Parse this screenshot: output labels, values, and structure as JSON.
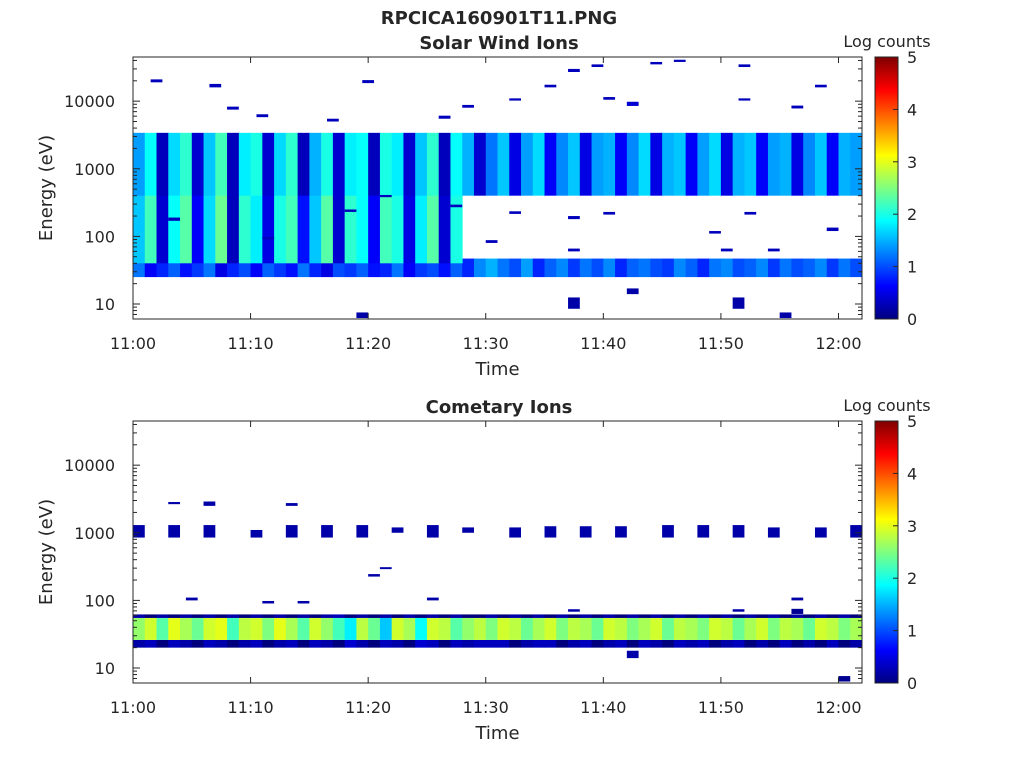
{
  "figure": {
    "title": "RPCICA160901T11.PNG"
  },
  "colormap": {
    "stops": [
      "#00007f",
      "#0000ff",
      "#007fff",
      "#00ffff",
      "#7fff7f",
      "#ffff00",
      "#ff7f00",
      "#ff0000",
      "#7f0000"
    ]
  },
  "chart_data": [
    {
      "type": "heatmap",
      "title": "Solar Wind Ions",
      "xlabel": "Time",
      "ylabel": "Energy (eV)",
      "yscale": "log",
      "xlim": [
        "11:00",
        "12:02"
      ],
      "ylim": [
        6,
        45000
      ],
      "x_ticks": [
        "11:00",
        "11:10",
        "11:20",
        "11:30",
        "11:40",
        "11:50",
        "12:00"
      ],
      "y_ticks": [
        {
          "value": 10,
          "label": "10"
        },
        {
          "value": 100,
          "label": "100"
        },
        {
          "value": 1000,
          "label": "1000"
        },
        {
          "value": 10000,
          "label": "10000"
        }
      ],
      "colorbar": {
        "label": "Log counts",
        "min": 0,
        "max": 5,
        "ticks": [
          "0",
          "1",
          "2",
          "3",
          "4",
          "5"
        ]
      },
      "bands": [
        {
          "start": "11:00",
          "end": "12:02",
          "step_min": 1,
          "e_lo": 25,
          "e_hi": 47,
          "levels": [
            1.2,
            0.6,
            0.8,
            1.1,
            0.7,
            0.9,
            1.2,
            0.5,
            0.8,
            1.0,
            0.6,
            1.1,
            0.9,
            0.7,
            1.2,
            0.8,
            0.5,
            1.0,
            0.9,
            1.1,
            0.7,
            0.8,
            1.2,
            0.6,
            0.9,
            1.0,
            0.7,
            1.1,
            0.8,
            1.3,
            1.5,
            1.2,
            1.0,
            1.4,
            0.8,
            1.1,
            1.3,
            0.9,
            1.2,
            1.0,
            1.3,
            0.8,
            1.1,
            1.2,
            1.0,
            0.9,
            1.3,
            1.1,
            0.8,
            1.2,
            1.3,
            1.0,
            1.1,
            1.3,
            0.9,
            1.2,
            1.0,
            1.1,
            1.3,
            0.9,
            1.2,
            1.0
          ]
        },
        {
          "start": "11:00",
          "end": "11:28",
          "step_min": 1,
          "e_lo": 40,
          "e_hi": 600,
          "levels": [
            1.6,
            2.2,
            0.4,
            1.9,
            2.3,
            0.6,
            1.7,
            2.4,
            0.3,
            2.1,
            1.8,
            0.5,
            2.0,
            2.2,
            0.7,
            1.6,
            2.3,
            0.4,
            2.1,
            1.9,
            0.6,
            2.2,
            2.0,
            0.5,
            1.8,
            2.3,
            0.4,
            2.0
          ]
        },
        {
          "start": "11:28",
          "end": "12:02",
          "step_min": 1,
          "e_lo": 700,
          "e_hi": 1900,
          "levels": [
            1.9,
            2.2,
            0.8,
            2.0,
            2.3,
            1.0,
            1.8,
            2.2,
            0.9,
            2.1,
            2.2,
            1.1,
            2.0,
            2.3,
            0.8,
            2.2,
            2.1,
            1.0,
            1.9,
            2.3,
            0.9,
            2.1,
            2.2,
            1.0,
            2.0,
            2.3,
            0.8,
            2.1,
            2.2,
            1.0,
            1.9,
            2.2,
            0.9,
            2.0
          ]
        },
        {
          "start": "11:00",
          "end": "12:02",
          "step_min": 1,
          "e_lo": 400,
          "e_hi": 3400,
          "levels": [
            1.4,
            1.9,
            0.3,
            1.7,
            2.1,
            0.4,
            1.6,
            2.2,
            0.3,
            1.8,
            2.0,
            0.4,
            1.7,
            2.1,
            0.3,
            1.5,
            2.0,
            0.4,
            1.8,
            1.9,
            0.3,
            2.0,
            1.8,
            0.4,
            1.6,
            2.1,
            0.3,
            1.9,
            1.5,
            0.4,
            1.2,
            1.6,
            0.5,
            1.4,
            1.7,
            0.6,
            1.3,
            1.6,
            0.5,
            1.4,
            1.5,
            0.6,
            1.3,
            1.7,
            0.5,
            1.5,
            1.6,
            0.6,
            1.4,
            1.7,
            0.5,
            1.5,
            1.6,
            0.6,
            1.4,
            1.5,
            0.5,
            1.3,
            1.6,
            0.6,
            1.5,
            1.4
          ]
        }
      ],
      "sparse_cells": [
        {
          "t": "11:01.5",
          "e_lo": 19000,
          "e_hi": 21000,
          "level": 0.3
        },
        {
          "t": "11:06.5",
          "e_lo": 16000,
          "e_hi": 18000,
          "level": 0.3
        },
        {
          "t": "11:08",
          "e_lo": 7500,
          "e_hi": 8300,
          "level": 0.3
        },
        {
          "t": "11:10.5",
          "e_lo": 5800,
          "e_hi": 6400,
          "level": 0.3
        },
        {
          "t": "11:16.5",
          "e_lo": 5000,
          "e_hi": 5500,
          "level": 0.3
        },
        {
          "t": "11:19.5",
          "e_lo": 18500,
          "e_hi": 20500,
          "level": 0.3
        },
        {
          "t": "11:26",
          "e_lo": 5500,
          "e_hi": 6100,
          "level": 0.3
        },
        {
          "t": "11:28",
          "e_lo": 8000,
          "e_hi": 8800,
          "level": 0.3
        },
        {
          "t": "11:32",
          "e_lo": 10200,
          "e_hi": 11000,
          "level": 0.3
        },
        {
          "t": "11:35",
          "e_lo": 16000,
          "e_hi": 17500,
          "level": 0.3
        },
        {
          "t": "11:37",
          "e_lo": 27000,
          "e_hi": 30000,
          "level": 0.3
        },
        {
          "t": "11:39",
          "e_lo": 32000,
          "e_hi": 35000,
          "level": 0.3
        },
        {
          "t": "11:40",
          "e_lo": 10500,
          "e_hi": 11500,
          "level": 0.3
        },
        {
          "t": "11:42",
          "e_lo": 8500,
          "e_hi": 9800,
          "level": 0.4
        },
        {
          "t": "11:44",
          "e_lo": 35000,
          "e_hi": 38000,
          "level": 0.3
        },
        {
          "t": "11:46",
          "e_lo": 38000,
          "e_hi": 41000,
          "level": 0.3
        },
        {
          "t": "11:51.5",
          "e_lo": 10200,
          "e_hi": 11000,
          "level": 0.3
        },
        {
          "t": "11:51.5",
          "e_lo": 32000,
          "e_hi": 35000,
          "level": 0.3
        },
        {
          "t": "11:56",
          "e_lo": 7800,
          "e_hi": 8600,
          "level": 0.3
        },
        {
          "t": "11:58",
          "e_lo": 16000,
          "e_hi": 17500,
          "level": 0.3
        },
        {
          "t": "11:03",
          "e_lo": 170,
          "e_hi": 190,
          "level": 0.3
        },
        {
          "t": "11:11",
          "e_lo": 90,
          "e_hi": 98,
          "level": 0.3
        },
        {
          "t": "11:18",
          "e_lo": 230,
          "e_hi": 250,
          "level": 0.3
        },
        {
          "t": "11:21",
          "e_lo": 380,
          "e_hi": 410,
          "level": 0.3
        },
        {
          "t": "11:27",
          "e_lo": 270,
          "e_hi": 295,
          "level": 0.3
        },
        {
          "t": "11:30",
          "e_lo": 80,
          "e_hi": 88,
          "level": 0.3
        },
        {
          "t": "11:32",
          "e_lo": 215,
          "e_hi": 235,
          "level": 0.3
        },
        {
          "t": "11:37",
          "e_lo": 180,
          "e_hi": 200,
          "level": 0.3
        },
        {
          "t": "11:37",
          "e_lo": 60,
          "e_hi": 66,
          "level": 0.3
        },
        {
          "t": "11:40",
          "e_lo": 210,
          "e_hi": 230,
          "level": 0.3
        },
        {
          "t": "11:49",
          "e_lo": 110,
          "e_hi": 120,
          "level": 0.3
        },
        {
          "t": "11:50",
          "e_lo": 60,
          "e_hi": 66,
          "level": 0.3
        },
        {
          "t": "11:52",
          "e_lo": 210,
          "e_hi": 230,
          "level": 0.3
        },
        {
          "t": "11:54",
          "e_lo": 60,
          "e_hi": 66,
          "level": 0.3
        },
        {
          "t": "11:59",
          "e_lo": 120,
          "e_hi": 135,
          "level": 0.3
        },
        {
          "t": "11:37",
          "e_lo": 8.5,
          "e_hi": 12.5,
          "level": 0.2
        },
        {
          "t": "11:42",
          "e_lo": 14,
          "e_hi": 17,
          "level": 0.2
        },
        {
          "t": "11:51",
          "e_lo": 8.5,
          "e_hi": 12.5,
          "level": 0.2
        },
        {
          "t": "11:55",
          "e_lo": 6.2,
          "e_hi": 7.5,
          "level": 0.2
        },
        {
          "t": "11:19",
          "e_lo": 6.2,
          "e_hi": 7.5,
          "level": 0.2
        }
      ]
    },
    {
      "type": "heatmap",
      "title": "Cometary Ions",
      "xlabel": "Time",
      "ylabel": "Energy (eV)",
      "yscale": "log",
      "xlim": [
        "11:00",
        "12:02"
      ],
      "ylim": [
        6,
        45000
      ],
      "x_ticks": [
        "11:00",
        "11:10",
        "11:20",
        "11:30",
        "11:40",
        "11:50",
        "12:00"
      ],
      "y_ticks": [
        {
          "value": 10,
          "label": "10"
        },
        {
          "value": 100,
          "label": "100"
        },
        {
          "value": 1000,
          "label": "1000"
        },
        {
          "value": 10000,
          "label": "10000"
        }
      ],
      "colorbar": {
        "label": "Log counts",
        "min": 0,
        "max": 5,
        "ticks": [
          "0",
          "1",
          "2",
          "3",
          "4",
          "5"
        ]
      },
      "bands": [
        {
          "start": "11:00",
          "end": "12:02",
          "step_min": 1,
          "e_lo": 20,
          "e_hi": 26,
          "levels": [
            0.2,
            0.3,
            0.0,
            0.3,
            0.2,
            0.0,
            0.3,
            0.2,
            0.0,
            0.2,
            0.3,
            0.0,
            0.2,
            0.3,
            0.0,
            0.3,
            0.2,
            0.0,
            0.4,
            0.2,
            0.0,
            0.3,
            0.2,
            0.0,
            0.4,
            0.3,
            0.0,
            0.3,
            0.2,
            0.3,
            0.3,
            0.3,
            0.0,
            0.2,
            0.3,
            0.3,
            0.0,
            0.2,
            0.3,
            0.0,
            0.2,
            0.3,
            0.0,
            0.3,
            0.2,
            0.0,
            0.3,
            0.2,
            0.3,
            0.0,
            0.2,
            0.3,
            0.0,
            0.2,
            0.0,
            0.3,
            0.0,
            0.2,
            0.0,
            0.3,
            0.0,
            0.2
          ]
        },
        {
          "start": "11:00",
          "end": "12:02",
          "step_min": 1,
          "e_lo": 26,
          "e_hi": 55,
          "levels": [
            2.6,
            2.9,
            2.3,
            3.0,
            2.7,
            2.4,
            2.9,
            3.0,
            2.2,
            2.8,
            2.9,
            2.5,
            3.0,
            2.7,
            2.3,
            2.9,
            2.6,
            2.2,
            1.8,
            2.8,
            2.4,
            1.6,
            2.9,
            2.7,
            1.9,
            2.9,
            2.8,
            2.3,
            2.6,
            2.8,
            2.5,
            2.9,
            2.8,
            2.4,
            2.7,
            2.9,
            2.5,
            2.8,
            2.7,
            2.4,
            2.9,
            2.8,
            2.5,
            2.7,
            2.9,
            2.4,
            2.8,
            2.7,
            2.5,
            2.9,
            2.8,
            2.4,
            2.7,
            2.9,
            2.5,
            2.8,
            2.7,
            2.4,
            2.9,
            2.8,
            2.5,
            2.7
          ]
        },
        {
          "start": "11:00",
          "end": "12:02",
          "step_min": 1,
          "e_lo": 55,
          "e_hi": 62,
          "levels": [
            0.2,
            0.0,
            0.2,
            0.0,
            0.2,
            0.0,
            0.2,
            0.0,
            0.2,
            0.0,
            0.2,
            0.0,
            0.2,
            0.0,
            0.2,
            0.0,
            0.2,
            0.3,
            0.0,
            0.2,
            0.0,
            0.2,
            0.0,
            0.2,
            0.0,
            0.2,
            0.0,
            0.2,
            0.0,
            0.0,
            0.2,
            0.0,
            0.2,
            0.0,
            0.2,
            0.0,
            0.2,
            0.0,
            0.2,
            0.0,
            0.2,
            0.0,
            0.2,
            0.0,
            0.2,
            0.0,
            0.2,
            0.0,
            0.2,
            0.0,
            0.2,
            0.0,
            0.2,
            0.0,
            0.2,
            0.0,
            0.2,
            0.0,
            0.2,
            0.0,
            0.2,
            0.0
          ]
        }
      ],
      "sparse_cells": [
        {
          "t": "11:00",
          "e_lo": 850,
          "e_hi": 1300,
          "level": 0.2
        },
        {
          "t": "11:03",
          "e_lo": 850,
          "e_hi": 1300,
          "level": 0.2
        },
        {
          "t": "11:06",
          "e_lo": 850,
          "e_hi": 1300,
          "level": 0.2
        },
        {
          "t": "11:10",
          "e_lo": 850,
          "e_hi": 1100,
          "level": 0.2
        },
        {
          "t": "11:13",
          "e_lo": 850,
          "e_hi": 1300,
          "level": 0.2
        },
        {
          "t": "11:16",
          "e_lo": 850,
          "e_hi": 1300,
          "level": 0.2
        },
        {
          "t": "11:19",
          "e_lo": 850,
          "e_hi": 1300,
          "level": 0.2
        },
        {
          "t": "11:22",
          "e_lo": 1000,
          "e_hi": 1200,
          "level": 0.2
        },
        {
          "t": "11:25",
          "e_lo": 850,
          "e_hi": 1300,
          "level": 0.2
        },
        {
          "t": "11:28",
          "e_lo": 1000,
          "e_hi": 1200,
          "level": 0.2
        },
        {
          "t": "11:32",
          "e_lo": 850,
          "e_hi": 1200,
          "level": 0.2
        },
        {
          "t": "11:35",
          "e_lo": 850,
          "e_hi": 1250,
          "level": 0.2
        },
        {
          "t": "11:38",
          "e_lo": 850,
          "e_hi": 1250,
          "level": 0.2
        },
        {
          "t": "11:41",
          "e_lo": 850,
          "e_hi": 1250,
          "level": 0.2
        },
        {
          "t": "11:45",
          "e_lo": 850,
          "e_hi": 1300,
          "level": 0.2
        },
        {
          "t": "11:48",
          "e_lo": 850,
          "e_hi": 1300,
          "level": 0.2
        },
        {
          "t": "11:51",
          "e_lo": 850,
          "e_hi": 1300,
          "level": 0.2
        },
        {
          "t": "11:54",
          "e_lo": 850,
          "e_hi": 1200,
          "level": 0.2
        },
        {
          "t": "11:58",
          "e_lo": 850,
          "e_hi": 1200,
          "level": 0.2
        },
        {
          "t": "12:01",
          "e_lo": 850,
          "e_hi": 1300,
          "level": 0.2
        },
        {
          "t": "11:03",
          "e_lo": 2650,
          "e_hi": 2850,
          "level": 0.2
        },
        {
          "t": "11:06",
          "e_lo": 2500,
          "e_hi": 2900,
          "level": 0.2
        },
        {
          "t": "11:13",
          "e_lo": 2500,
          "e_hi": 2750,
          "level": 0.2
        },
        {
          "t": "11:04.5",
          "e_lo": 100,
          "e_hi": 110,
          "level": 0.2
        },
        {
          "t": "11:11",
          "e_lo": 90,
          "e_hi": 98,
          "level": 0.2
        },
        {
          "t": "11:14",
          "e_lo": 90,
          "e_hi": 98,
          "level": 0.2
        },
        {
          "t": "11:20",
          "e_lo": 225,
          "e_hi": 245,
          "level": 0.2
        },
        {
          "t": "11:21",
          "e_lo": 290,
          "e_hi": 310,
          "level": 0.2
        },
        {
          "t": "11:25",
          "e_lo": 100,
          "e_hi": 110,
          "level": 0.2
        },
        {
          "t": "11:37",
          "e_lo": 68,
          "e_hi": 74,
          "level": 0.2
        },
        {
          "t": "11:51",
          "e_lo": 68,
          "e_hi": 74,
          "level": 0.2
        },
        {
          "t": "11:56",
          "e_lo": 100,
          "e_hi": 110,
          "level": 0.2
        },
        {
          "t": "11:56",
          "e_lo": 63,
          "e_hi": 75,
          "level": 0.1
        },
        {
          "t": "11:42",
          "e_lo": 14,
          "e_hi": 18,
          "level": 0.2
        },
        {
          "t": "12:00",
          "e_lo": 6.3,
          "e_hi": 7.6,
          "level": 0.1
        }
      ]
    }
  ]
}
